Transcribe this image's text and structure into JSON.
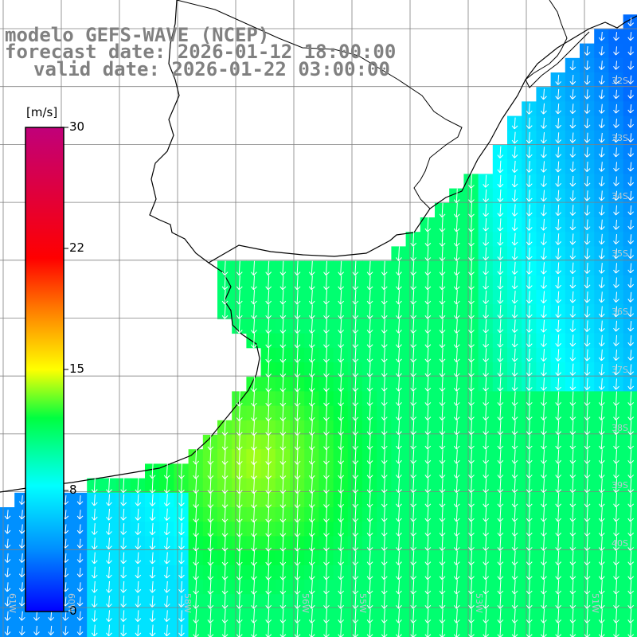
{
  "title": {
    "line1": "modelo GEFS-WAVE (NCEP)",
    "line2": "forecast date: 2026-01-12 18:00:00",
    "line3": "valid date: 2026-01-22 03:00:00"
  },
  "colorbar": {
    "unit": "[m/s]",
    "ticks": [
      "30",
      "22",
      "15",
      "8",
      "0"
    ],
    "tick_values": [
      30,
      22,
      15,
      8,
      0
    ],
    "range": [
      0,
      30
    ],
    "colors": [
      "#0000ff",
      "#0090ff",
      "#00ffff",
      "#00ff40",
      "#40ff00",
      "#ffff00",
      "#ff8000",
      "#ff0000",
      "#e0006a",
      "#c0007a"
    ]
  },
  "map": {
    "region": "South America - southern Brazil, Uruguay and Argentina coast",
    "lat_labels": [
      "32S",
      "33S",
      "34S",
      "35S",
      "36S",
      "37S",
      "38S",
      "39S",
      "40S"
    ],
    "lon_labels": [
      "61W",
      "60W",
      "58W",
      "56W",
      "55W",
      "53W",
      "51W"
    ],
    "land_color": "#ffffff",
    "coastline_color": "#000000",
    "grid_color": "#808080",
    "arrow_color": "#ffffff",
    "wind_direction": "from north (arrows pointing south)",
    "dominant_speed_ms": 12
  }
}
